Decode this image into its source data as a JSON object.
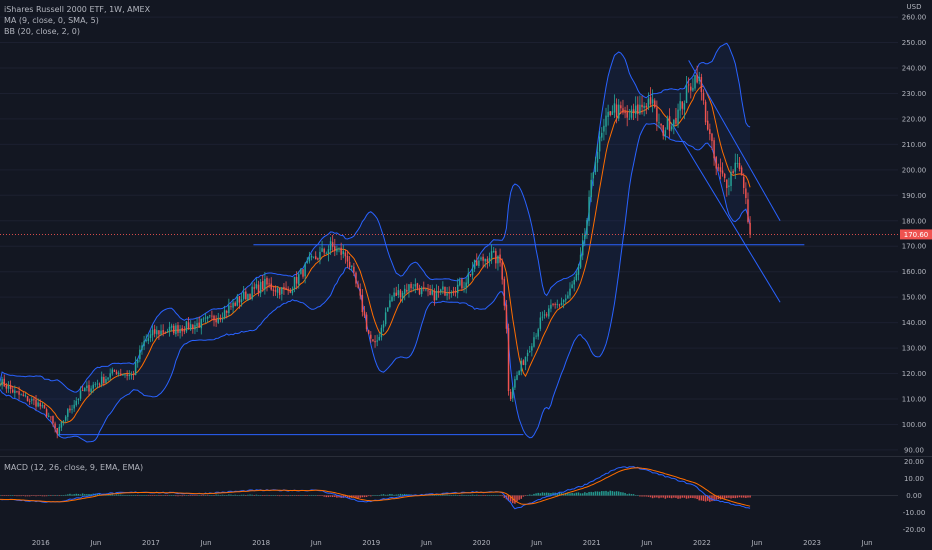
{
  "header": {
    "title": "iShares Russell 2000 ETF, 1W, AMEX",
    "ma_legend": "MA (9, close, 0, SMA, 5)",
    "bb_legend": "BB (20, close, 2, 0)",
    "currency": "USD"
  },
  "macd_panel": {
    "legend": "MACD (12, 26, close, 9, EMA, EMA)"
  },
  "price_axis": {
    "ticks": [
      "260.00",
      "250.00",
      "240.00",
      "230.00",
      "220.00",
      "210.00",
      "200.00",
      "190.00",
      "180.00",
      "170.00",
      "160.00",
      "150.00",
      "140.00",
      "130.00",
      "120.00",
      "110.00",
      "100.00",
      "90.00"
    ],
    "current_price": "170.60"
  },
  "macd_axis": {
    "ticks": [
      "20.00",
      "10.00",
      "0.00",
      "-10.00",
      "-20.00"
    ]
  },
  "time_axis": {
    "ticks": [
      "2016",
      "Jun",
      "2017",
      "Jun",
      "2018",
      "Jun",
      "2019",
      "Jun",
      "2020",
      "Jun",
      "2021",
      "Jun",
      "2022",
      "Jun",
      "2023",
      "Jun"
    ]
  },
  "colors": {
    "background": "#131722",
    "up": "#26a69a",
    "down": "#ef5350",
    "bb_line": "#2962ff",
    "bb_fill": "#2962ff",
    "ma_line": "#ff6d00",
    "trendline": "#2962ff",
    "price_line": "#ef5350",
    "macd_line": "#2962ff",
    "signal_line": "#ff6d00"
  },
  "chart_data": {
    "type": "candlestick",
    "symbol": "IWM",
    "interval": "1W",
    "y_range": [
      88,
      262
    ],
    "price_anchors": [
      [
        2015.6,
        117
      ],
      [
        2015.75,
        112
      ],
      [
        2015.95,
        108
      ],
      [
        2016.05,
        103
      ],
      [
        2016.12,
        96
      ],
      [
        2016.2,
        104
      ],
      [
        2016.35,
        113
      ],
      [
        2016.55,
        118
      ],
      [
        2016.65,
        121
      ],
      [
        2016.8,
        119
      ],
      [
        2016.9,
        132
      ],
      [
        2017.0,
        136
      ],
      [
        2017.25,
        138
      ],
      [
        2017.45,
        140
      ],
      [
        2017.6,
        143
      ],
      [
        2017.8,
        150
      ],
      [
        2018.0,
        155
      ],
      [
        2018.2,
        152
      ],
      [
        2018.4,
        163
      ],
      [
        2018.6,
        170
      ],
      [
        2018.75,
        166
      ],
      [
        2018.85,
        152
      ],
      [
        2018.95,
        135
      ],
      [
        2019.0,
        130
      ],
      [
        2019.15,
        150
      ],
      [
        2019.35,
        155
      ],
      [
        2019.5,
        150
      ],
      [
        2019.65,
        153
      ],
      [
        2019.8,
        155
      ],
      [
        2019.9,
        162
      ],
      [
        2020.05,
        167
      ],
      [
        2020.15,
        163
      ],
      [
        2020.2,
        135
      ],
      [
        2020.22,
        108
      ],
      [
        2020.25,
        115
      ],
      [
        2020.35,
        125
      ],
      [
        2020.5,
        140
      ],
      [
        2020.6,
        145
      ],
      [
        2020.75,
        150
      ],
      [
        2020.85,
        160
      ],
      [
        2020.92,
        178
      ],
      [
        2021.0,
        205
      ],
      [
        2021.15,
        225
      ],
      [
        2021.3,
        220
      ],
      [
        2021.5,
        228
      ],
      [
        2021.6,
        215
      ],
      [
        2021.75,
        222
      ],
      [
        2021.85,
        232
      ],
      [
        2021.93,
        238
      ],
      [
        2022.0,
        222
      ],
      [
        2022.1,
        200
      ],
      [
        2022.2,
        195
      ],
      [
        2022.3,
        205
      ],
      [
        2022.37,
        187
      ],
      [
        2022.42,
        170.6
      ]
    ],
    "support_lines": [
      {
        "from": [
          2016.12,
          96
        ],
        "to": [
          2020.35,
          96
        ]
      },
      {
        "from": [
          2017.9,
          170.6
        ],
        "to": [
          2022.9,
          170.6
        ]
      }
    ],
    "channel_lines": [
      {
        "from": [
          2021.85,
          243
        ],
        "to": [
          2022.68,
          180
        ]
      },
      {
        "from": [
          2021.7,
          218
        ],
        "to": [
          2022.68,
          148
        ]
      }
    ],
    "macd": {
      "y_range": [
        -22,
        22
      ],
      "anchors": [
        [
          2015.6,
          -2
        ],
        [
          2016.1,
          -4
        ],
        [
          2016.5,
          1
        ],
        [
          2016.9,
          2
        ],
        [
          2017.4,
          1
        ],
        [
          2017.9,
          3
        ],
        [
          2018.5,
          3
        ],
        [
          2018.9,
          -4
        ],
        [
          2019.3,
          0
        ],
        [
          2019.9,
          2
        ],
        [
          2020.15,
          2
        ],
        [
          2020.28,
          -8
        ],
        [
          2020.55,
          -1
        ],
        [
          2020.9,
          6
        ],
        [
          2021.2,
          16
        ],
        [
          2021.35,
          17
        ],
        [
          2021.6,
          12
        ],
        [
          2021.9,
          6
        ],
        [
          2022.05,
          -2
        ],
        [
          2022.25,
          -5
        ],
        [
          2022.42,
          -8
        ]
      ]
    }
  }
}
